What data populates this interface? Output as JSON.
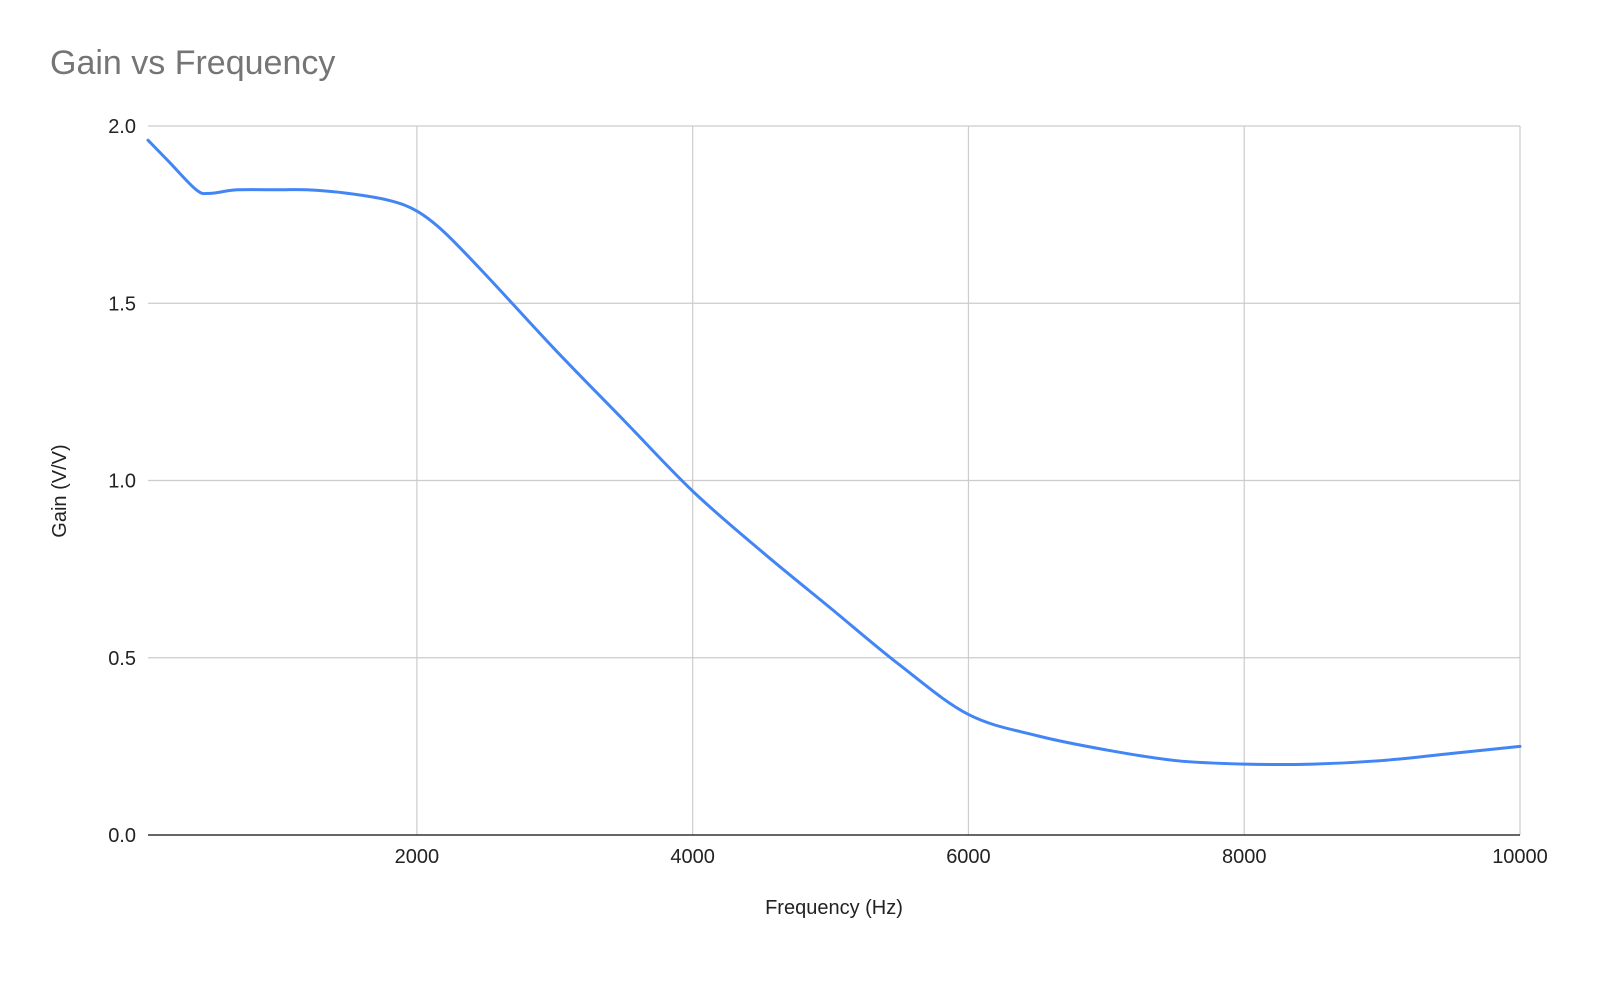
{
  "chart_data": {
    "type": "line",
    "title": "Gain vs Frequency",
    "xlabel": "Frequency (Hz)",
    "ylabel": "Gain (V/V)",
    "xlim": [
      50,
      10000
    ],
    "ylim": [
      0,
      2.0
    ],
    "x_ticks": [
      2000,
      4000,
      6000,
      8000,
      10000
    ],
    "x_tick_labels": [
      "2000",
      "4000",
      "6000",
      "8000",
      "10000"
    ],
    "y_ticks": [
      0,
      0.5,
      1.0,
      1.5,
      2.0
    ],
    "y_tick_labels": [
      "0.0",
      "0.5",
      "1.0",
      "1.5",
      "2.0"
    ],
    "grid": true,
    "legend": "none",
    "series": [
      {
        "color": "#4285f4",
        "x": [
          50,
          200,
          400,
          500,
          700,
          1000,
          1200,
          1500,
          1800,
          2000,
          2200,
          2500,
          3000,
          3500,
          4000,
          4500,
          5000,
          5500,
          6000,
          6500,
          7000,
          7500,
          8000,
          8500,
          9000,
          9500,
          10000
        ],
        "y": [
          1.96,
          1.9,
          1.82,
          1.81,
          1.82,
          1.82,
          1.82,
          1.81,
          1.79,
          1.76,
          1.7,
          1.58,
          1.37,
          1.17,
          0.97,
          0.8,
          0.64,
          0.48,
          0.34,
          0.28,
          0.24,
          0.21,
          0.2,
          0.2,
          0.21,
          0.23,
          0.25
        ]
      }
    ]
  }
}
